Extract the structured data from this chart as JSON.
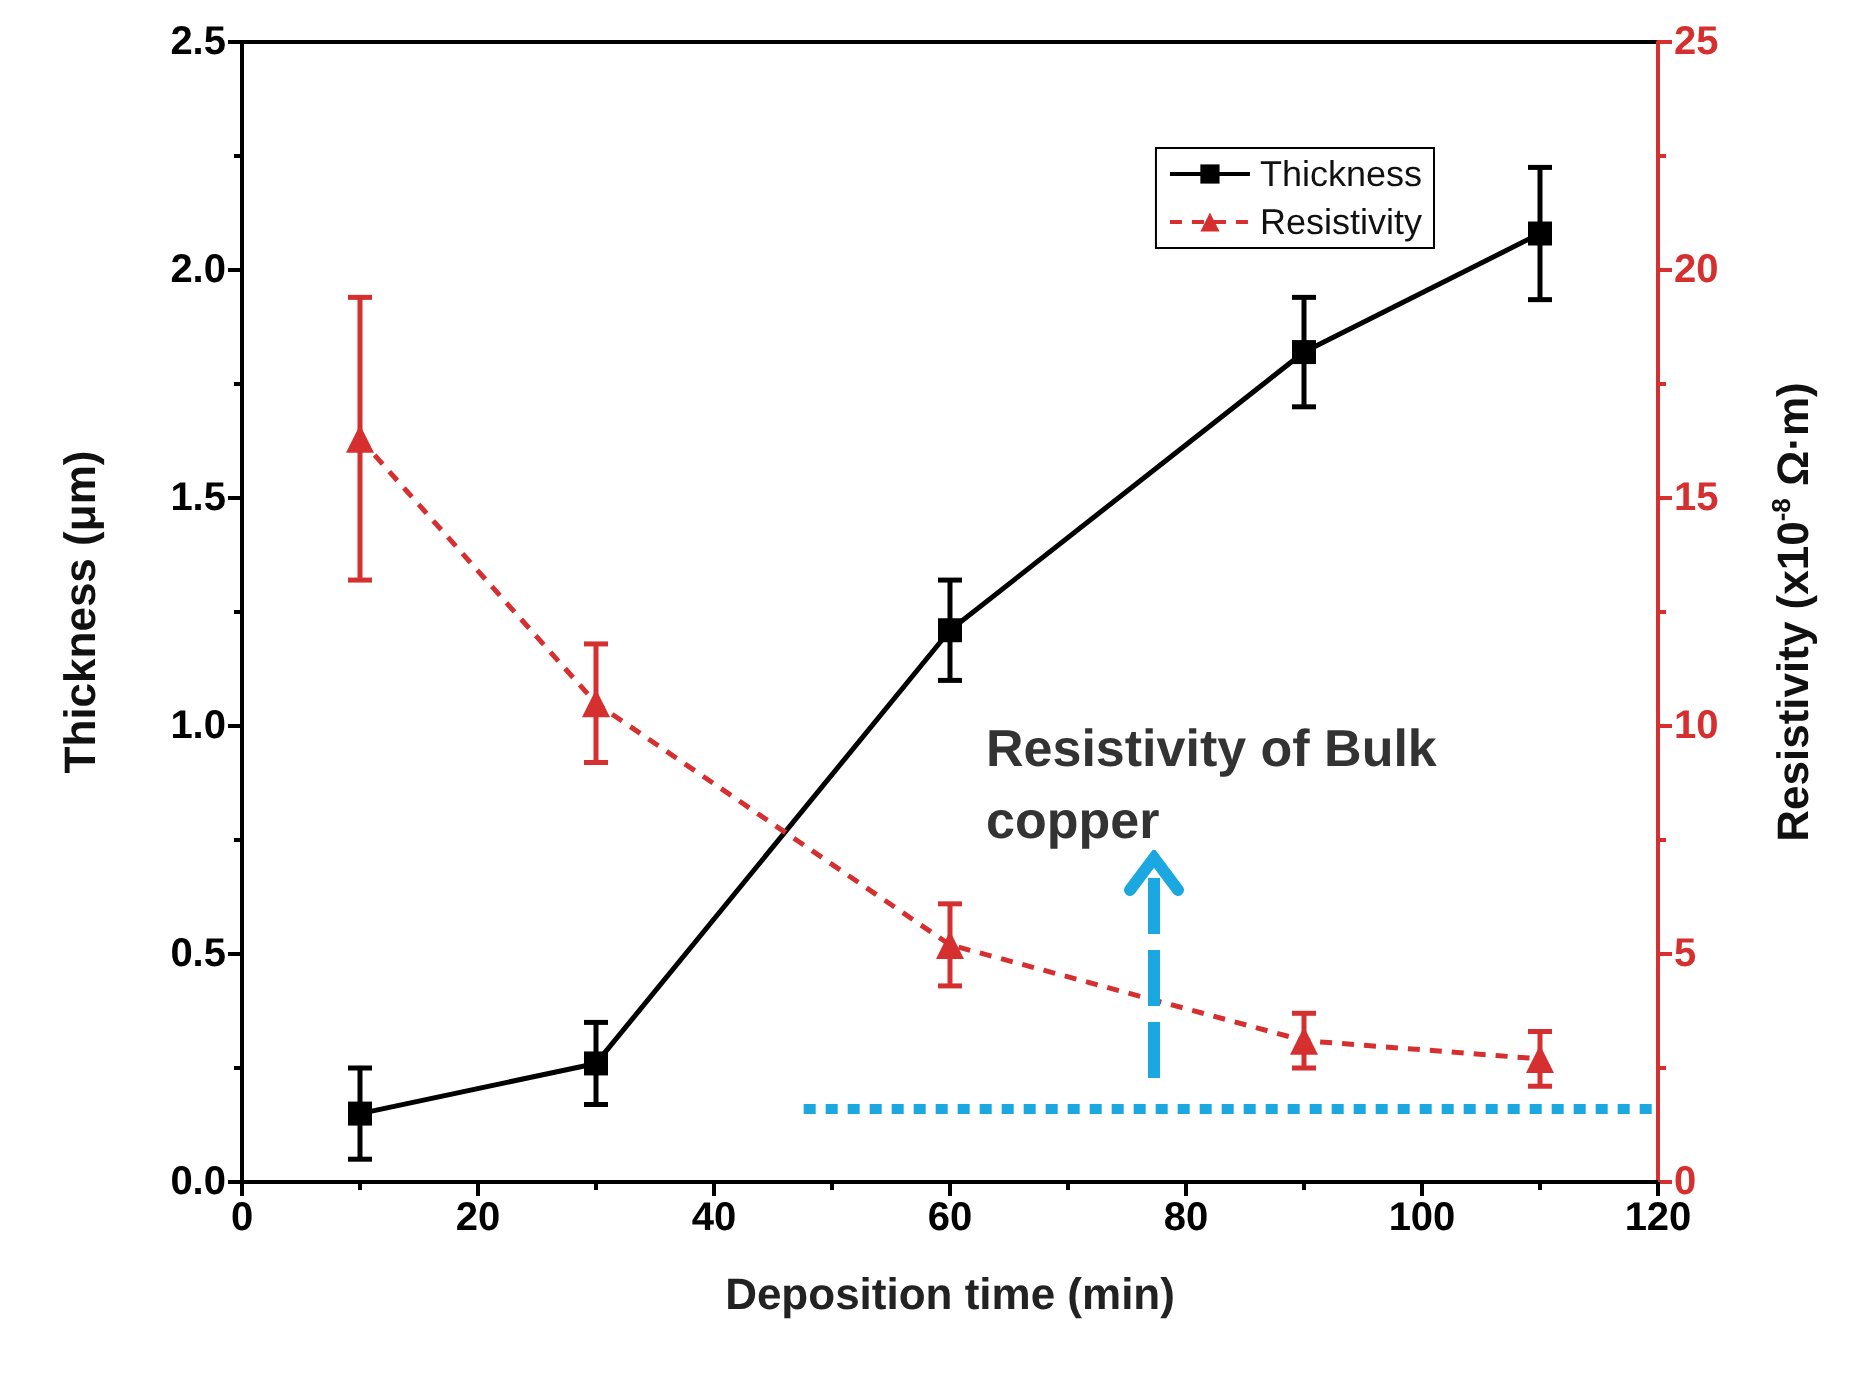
{
  "chart_data": {
    "type": "line",
    "xlabel": "Deposition time (min)",
    "ylabel": "Thickness (μm)",
    "y2label": "Resistivity (x10$^{-8}$ Ω·m)",
    "x": [
      10,
      30,
      60,
      90,
      110
    ],
    "series": [
      {
        "name": "Thickness",
        "color": "#000000",
        "marker": "square",
        "line_style": "solid",
        "values": [
          0.15,
          0.26,
          1.21,
          1.82,
          2.08
        ],
        "errors": [
          0.1,
          0.09,
          0.11,
          0.12,
          0.145
        ]
      },
      {
        "name": "Resistivity",
        "color": "#d62f2f",
        "marker": "triangle",
        "line_style": "dashed",
        "axis": "y2",
        "values": [
          16.3,
          10.5,
          5.2,
          3.1,
          2.7
        ],
        "errors": [
          3.1,
          1.3,
          0.9,
          0.6,
          0.6
        ]
      },
      {
        "color": "#1ba8e0",
        "marker": "none",
        "line_style": "dashed",
        "axis": "y2",
        "x": [
          47.6,
          120
        ],
        "values": [
          1.6,
          1.6
        ]
      }
    ],
    "annotations": [
      "Resistivity of Bulk copper"
    ],
    "xlim": [
      0,
      120
    ],
    "xticks": [
      0,
      20,
      40,
      60,
      80,
      100,
      120
    ],
    "ylim": [
      0,
      2.5
    ],
    "yticks": [
      {
        "value": 0,
        "label": "0.0"
      },
      0.5,
      {
        "value": 1,
        "label": "1.0"
      },
      1.5,
      {
        "value": 2,
        "label": "2.0"
      },
      2.5
    ],
    "y2lim": [
      0,
      25
    ],
    "y2ticks": [
      0,
      5,
      10,
      15,
      20,
      25
    ],
    "legend": "top right",
    "grid": false
  }
}
